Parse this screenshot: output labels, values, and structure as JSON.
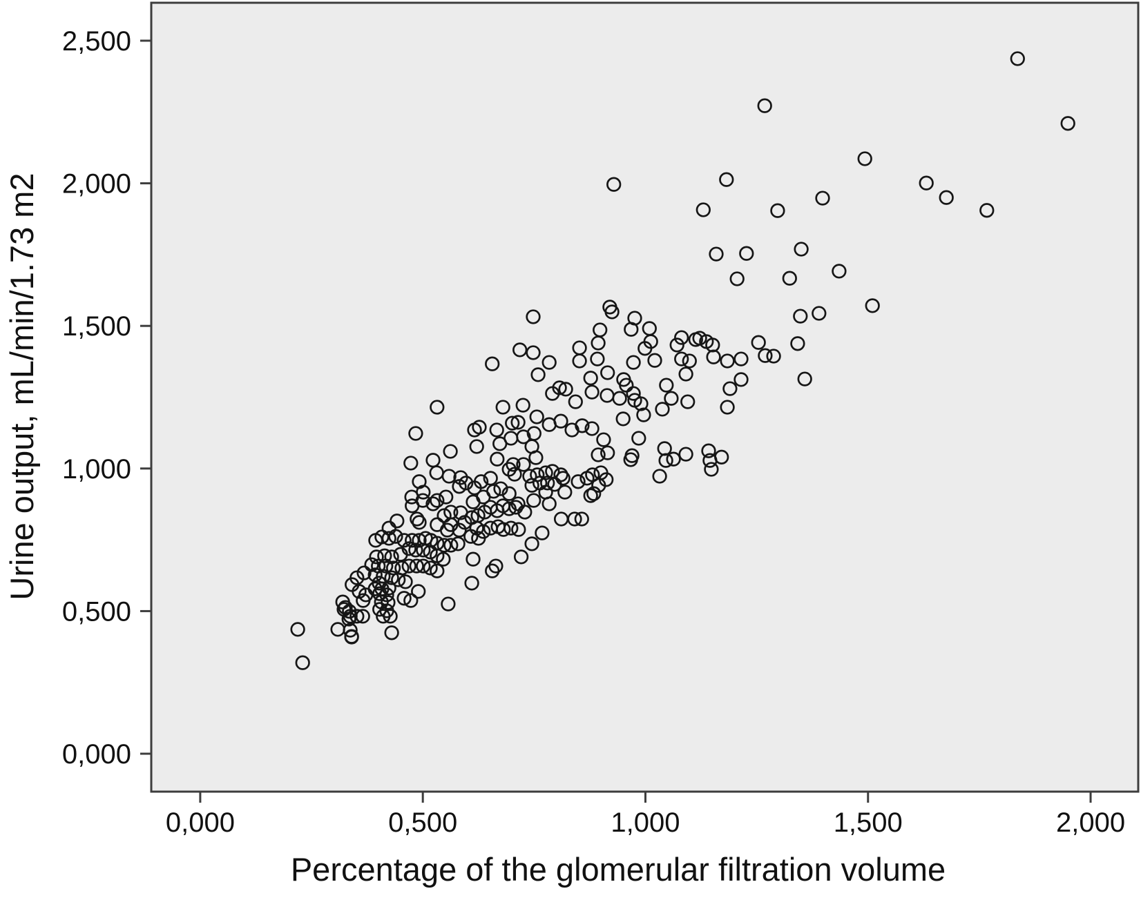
{
  "chart_data": {
    "type": "scatter",
    "title": "",
    "xlabel": "Percentage of the glomerular filtration volume",
    "ylabel": "Urine output, mL/min/1.73 m2",
    "decimal_format": "comma",
    "xlim": [
      -0.11,
      2.107
    ],
    "ylim": [
      -0.133,
      2.633
    ],
    "grid": false,
    "legend": "none",
    "x_ticks": {
      "values": [
        0.0,
        0.5,
        1.0,
        1.5,
        2.0
      ],
      "labels": [
        "0,000",
        "0,500",
        "1,000",
        "1,500",
        "2,000"
      ]
    },
    "y_ticks": {
      "values": [
        0.0,
        0.5,
        1.0,
        1.5,
        2.0,
        2.5
      ],
      "labels": [
        "0,000",
        "0,500",
        "1,000",
        "1,500",
        "2,000",
        "2,500"
      ]
    },
    "marker": {
      "shape": "open-circle",
      "radius_px": 9.3,
      "stroke_px": 2.7
    },
    "colors": {
      "plot_bg": "#ececec",
      "frame": "#3d3d3d",
      "marker": "#161616",
      "text": "#111111",
      "page_bg": "#ffffff"
    },
    "points": [
      [
        0.748,
        1.532
      ],
      [
        0.718,
        1.416
      ],
      [
        0.748,
        1.406
      ],
      [
        0.656,
        1.367
      ],
      [
        0.759,
        1.329
      ],
      [
        0.532,
        1.215
      ],
      [
        0.68,
        1.215
      ],
      [
        0.725,
        1.222
      ],
      [
        0.756,
        1.181
      ],
      [
        0.484,
        1.123
      ],
      [
        0.616,
        1.135
      ],
      [
        0.627,
        1.145
      ],
      [
        0.666,
        1.135
      ],
      [
        0.701,
        1.159
      ],
      [
        0.714,
        1.162
      ],
      [
        0.673,
        1.087
      ],
      [
        0.621,
        1.077
      ],
      [
        0.698,
        1.106
      ],
      [
        0.726,
        1.111
      ],
      [
        0.75,
        1.123
      ],
      [
        0.745,
        1.077
      ],
      [
        0.562,
        1.06
      ],
      [
        0.473,
        1.019
      ],
      [
        0.523,
        1.029
      ],
      [
        0.667,
        1.033
      ],
      [
        0.703,
        1.014
      ],
      [
        0.726,
        1.014
      ],
      [
        0.754,
        1.038
      ],
      [
        1.206,
        1.665
      ],
      [
        0.92,
        1.566
      ],
      [
        0.925,
        1.549
      ],
      [
        0.976,
        1.527
      ],
      [
        0.898,
        1.486
      ],
      [
        0.968,
        1.488
      ],
      [
        1.009,
        1.491
      ],
      [
        0.894,
        1.44
      ],
      [
        0.852,
        1.423
      ],
      [
        1.012,
        1.445
      ],
      [
        0.999,
        1.421
      ],
      [
        1.071,
        1.433
      ],
      [
        1.081,
        1.459
      ],
      [
        1.113,
        1.452
      ],
      [
        1.122,
        1.457
      ],
      [
        1.137,
        1.445
      ],
      [
        1.151,
        1.433
      ],
      [
        1.153,
        1.391
      ],
      [
        0.852,
        1.377
      ],
      [
        0.784,
        1.372
      ],
      [
        0.892,
        1.384
      ],
      [
        0.973,
        1.372
      ],
      [
        1.021,
        1.379
      ],
      [
        1.081,
        1.384
      ],
      [
        1.099,
        1.377
      ],
      [
        1.184,
        1.377
      ],
      [
        1.215,
        1.384
      ],
      [
        1.254,
        1.442
      ],
      [
        1.269,
        1.396
      ],
      [
        1.091,
        1.331
      ],
      [
        0.915,
        1.336
      ],
      [
        0.951,
        1.312
      ],
      [
        0.957,
        1.292
      ],
      [
        0.877,
        1.317
      ],
      [
        1.215,
        1.312
      ],
      [
        1.19,
        1.28
      ],
      [
        0.807,
        1.283
      ],
      [
        0.791,
        1.263
      ],
      [
        0.821,
        1.278
      ],
      [
        0.88,
        1.268
      ],
      [
        0.914,
        1.256
      ],
      [
        0.942,
        1.246
      ],
      [
        1.047,
        1.292
      ],
      [
        1.058,
        1.246
      ],
      [
        0.843,
        1.234
      ],
      [
        0.973,
        1.263
      ],
      [
        0.976,
        1.239
      ],
      [
        0.99,
        1.227
      ],
      [
        1.095,
        1.234
      ],
      [
        1.184,
        1.215
      ],
      [
        0.996,
        1.188
      ],
      [
        1.038,
        1.208
      ],
      [
        0.95,
        1.174
      ],
      [
        0.81,
        1.166
      ],
      [
        0.784,
        1.154
      ],
      [
        0.835,
        1.135
      ],
      [
        0.858,
        1.15
      ],
      [
        0.88,
        1.14
      ],
      [
        0.985,
        1.106
      ],
      [
        0.906,
        1.101
      ],
      [
        0.915,
        1.055
      ],
      [
        0.894,
        1.048
      ],
      [
        0.97,
        1.045
      ],
      [
        0.967,
        1.031
      ],
      [
        1.043,
        1.07
      ],
      [
        1.046,
        1.028
      ],
      [
        1.063,
        1.033
      ],
      [
        1.091,
        1.05
      ],
      [
        1.142,
        1.062
      ],
      [
        1.145,
        1.028
      ],
      [
        1.171,
        1.04
      ],
      [
        0.219,
        0.436
      ],
      [
        0.23,
        0.319
      ],
      [
        0.309,
        0.436
      ],
      [
        0.334,
        0.472
      ],
      [
        0.326,
        0.513
      ],
      [
        0.335,
        0.499
      ],
      [
        0.34,
        0.411
      ],
      [
        0.43,
        0.424
      ],
      [
        0.557,
        0.525
      ],
      [
        0.61,
        0.598
      ],
      [
        0.613,
        0.682
      ],
      [
        0.656,
        0.641
      ],
      [
        0.664,
        0.658
      ],
      [
        0.721,
        0.69
      ],
      [
        0.492,
        0.954
      ],
      [
        0.501,
        0.917
      ],
      [
        0.531,
        0.985
      ],
      [
        0.559,
        0.973
      ],
      [
        0.585,
        0.968
      ],
      [
        0.475,
        0.9
      ],
      [
        0.5,
        0.888
      ],
      [
        0.532,
        0.888
      ],
      [
        0.552,
        0.9
      ],
      [
        0.582,
        0.937
      ],
      [
        0.597,
        0.949
      ],
      [
        0.616,
        0.932
      ],
      [
        0.631,
        0.954
      ],
      [
        0.652,
        0.966
      ],
      [
        0.659,
        0.92
      ],
      [
        0.636,
        0.9
      ],
      [
        0.613,
        0.883
      ],
      [
        0.675,
        0.929
      ],
      [
        0.694,
        0.997
      ],
      [
        0.706,
        0.98
      ],
      [
        0.714,
        0.876
      ],
      [
        0.694,
        0.912
      ],
      [
        0.476,
        0.869
      ],
      [
        0.487,
        0.823
      ],
      [
        0.492,
        0.811
      ],
      [
        0.523,
        0.876
      ],
      [
        0.548,
        0.835
      ],
      [
        0.563,
        0.847
      ],
      [
        0.585,
        0.845
      ],
      [
        0.594,
        0.811
      ],
      [
        0.563,
        0.803
      ],
      [
        0.532,
        0.803
      ],
      [
        0.555,
        0.784
      ],
      [
        0.582,
        0.784
      ],
      [
        0.61,
        0.828
      ],
      [
        0.624,
        0.835
      ],
      [
        0.639,
        0.847
      ],
      [
        0.652,
        0.864
      ],
      [
        0.667,
        0.852
      ],
      [
        0.68,
        0.869
      ],
      [
        0.694,
        0.859
      ],
      [
        0.709,
        0.864
      ],
      [
        0.621,
        0.791
      ],
      [
        0.636,
        0.779
      ],
      [
        0.652,
        0.791
      ],
      [
        0.669,
        0.796
      ],
      [
        0.681,
        0.786
      ],
      [
        0.698,
        0.791
      ],
      [
        0.715,
        0.786
      ],
      [
        0.608,
        0.762
      ],
      [
        0.625,
        0.755
      ],
      [
        0.442,
        0.816
      ],
      [
        0.424,
        0.791
      ],
      [
        0.408,
        0.76
      ],
      [
        0.394,
        0.748
      ],
      [
        0.424,
        0.755
      ],
      [
        0.439,
        0.762
      ],
      [
        0.458,
        0.748
      ],
      [
        0.476,
        0.748
      ],
      [
        0.492,
        0.748
      ],
      [
        0.506,
        0.755
      ],
      [
        0.518,
        0.748
      ],
      [
        0.532,
        0.738
      ],
      [
        0.548,
        0.731
      ],
      [
        0.563,
        0.731
      ],
      [
        0.579,
        0.736
      ],
      [
        0.469,
        0.719
      ],
      [
        0.484,
        0.714
      ],
      [
        0.501,
        0.714
      ],
      [
        0.517,
        0.707
      ],
      [
        0.532,
        0.694
      ],
      [
        0.546,
        0.682
      ],
      [
        0.45,
        0.699
      ],
      [
        0.43,
        0.69
      ],
      [
        0.414,
        0.694
      ],
      [
        0.396,
        0.69
      ],
      [
        0.385,
        0.663
      ],
      [
        0.4,
        0.658
      ],
      [
        0.417,
        0.658
      ],
      [
        0.434,
        0.651
      ],
      [
        0.453,
        0.651
      ],
      [
        0.469,
        0.658
      ],
      [
        0.486,
        0.658
      ],
      [
        0.501,
        0.658
      ],
      [
        0.517,
        0.651
      ],
      [
        0.532,
        0.641
      ],
      [
        0.368,
        0.634
      ],
      [
        0.352,
        0.617
      ],
      [
        0.341,
        0.593
      ],
      [
        0.357,
        0.569
      ],
      [
        0.372,
        0.557
      ],
      [
        0.366,
        0.537
      ],
      [
        0.393,
        0.627
      ],
      [
        0.411,
        0.622
      ],
      [
        0.43,
        0.617
      ],
      [
        0.445,
        0.61
      ],
      [
        0.461,
        0.603
      ],
      [
        0.402,
        0.598
      ],
      [
        0.393,
        0.578
      ],
      [
        0.408,
        0.578
      ],
      [
        0.424,
        0.581
      ],
      [
        0.403,
        0.561
      ],
      [
        0.419,
        0.557
      ],
      [
        0.407,
        0.532
      ],
      [
        0.422,
        0.53
      ],
      [
        0.403,
        0.506
      ],
      [
        0.419,
        0.501
      ],
      [
        0.411,
        0.482
      ],
      [
        0.427,
        0.482
      ],
      [
        0.458,
        0.545
      ],
      [
        0.473,
        0.537
      ],
      [
        0.49,
        0.569
      ],
      [
        0.32,
        0.532
      ],
      [
        0.323,
        0.506
      ],
      [
        0.337,
        0.482
      ],
      [
        0.352,
        0.482
      ],
      [
        0.365,
        0.482
      ],
      [
        0.337,
        0.433
      ],
      [
        0.34,
        0.409
      ],
      [
        0.74,
        0.973
      ],
      [
        0.757,
        0.978
      ],
      [
        0.776,
        0.985
      ],
      [
        0.791,
        0.99
      ],
      [
        0.81,
        0.978
      ],
      [
        0.745,
        0.941
      ],
      [
        0.763,
        0.949
      ],
      [
        0.78,
        0.949
      ],
      [
        0.796,
        0.944
      ],
      [
        0.815,
        0.966
      ],
      [
        0.849,
        0.954
      ],
      [
        0.869,
        0.966
      ],
      [
        0.881,
        0.978
      ],
      [
        0.9,
        0.985
      ],
      [
        0.912,
        0.961
      ],
      [
        0.895,
        0.941
      ],
      [
        0.776,
        0.917
      ],
      [
        0.819,
        0.917
      ],
      [
        0.877,
        0.905
      ],
      [
        0.884,
        0.912
      ],
      [
        0.749,
        0.888
      ],
      [
        0.784,
        0.876
      ],
      [
        0.729,
        0.847
      ],
      [
        0.811,
        0.823
      ],
      [
        0.841,
        0.823
      ],
      [
        0.857,
        0.823
      ],
      [
        0.768,
        0.774
      ],
      [
        0.745,
        0.736
      ],
      [
        1.032,
        0.973
      ],
      [
        1.148,
        0.997
      ],
      [
        1.324,
        1.667
      ],
      [
        1.435,
        1.692
      ],
      [
        1.51,
        1.571
      ],
      [
        1.348,
        1.534
      ],
      [
        1.39,
        1.544
      ],
      [
        1.342,
        1.438
      ],
      [
        1.288,
        1.394
      ],
      [
        1.358,
        1.314
      ],
      [
        1.268,
        2.272
      ],
      [
        0.929,
        1.996
      ],
      [
        1.182,
        2.013
      ],
      [
        1.13,
        1.907
      ],
      [
        1.297,
        1.904
      ],
      [
        1.398,
        1.948
      ],
      [
        1.159,
        1.752
      ],
      [
        1.227,
        1.754
      ],
      [
        1.35,
        1.769
      ],
      [
        1.836,
        2.437
      ],
      [
        1.949,
        2.21
      ],
      [
        1.493,
        2.086
      ],
      [
        1.631,
        2.001
      ],
      [
        1.676,
        1.95
      ],
      [
        1.767,
        1.905
      ]
    ]
  }
}
